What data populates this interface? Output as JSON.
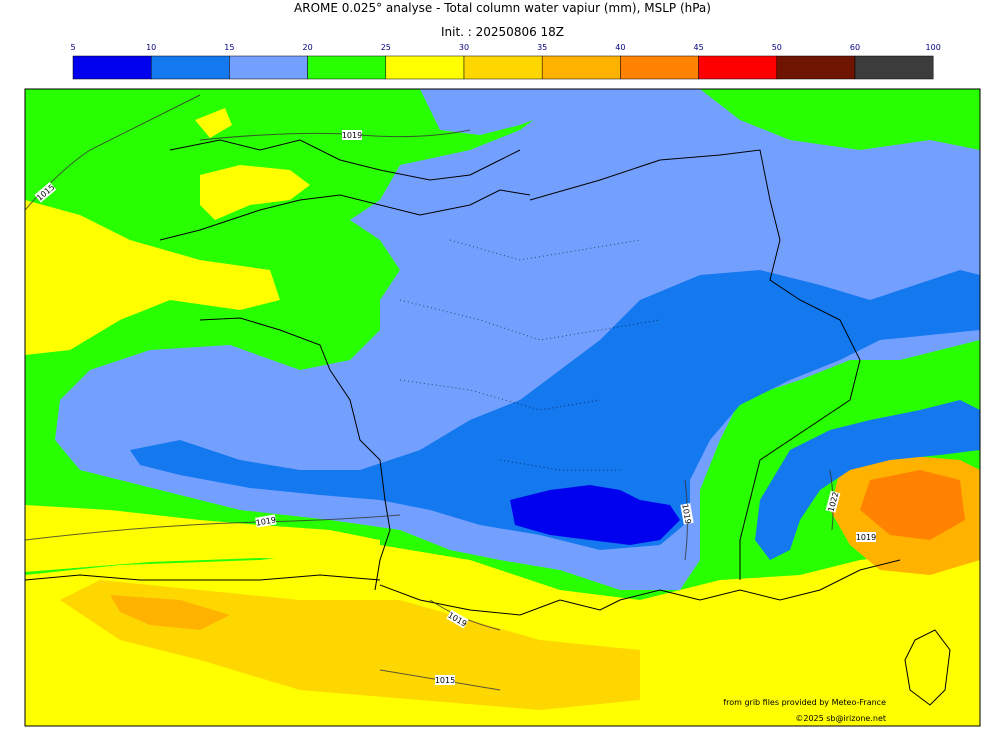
{
  "header": {
    "title": "AROME 0.025° analyse - Total column water vapiur (mm), MSLP (hPa)",
    "subtitle": "Init. : 20250806 18Z"
  },
  "colorbar": {
    "ticks": [
      "5",
      "10",
      "15",
      "20",
      "25",
      "30",
      "35",
      "40",
      "45",
      "50",
      "60",
      "100"
    ],
    "colors": [
      "#0000ee",
      "#1478ef",
      "#73a0ff",
      "#28ff00",
      "#ffff00",
      "#ffd700",
      "#ffb300",
      "#ff8200",
      "#ff0000",
      "#6e1400",
      "#3c3c3c"
    ]
  },
  "isobar_labels": [
    "1019",
    "1015",
    "1019",
    "1019",
    "1022",
    "1019",
    "1019",
    "1015"
  ],
  "credits": {
    "source": "from grib files provided by Meteo-France",
    "copyright": "©2025 sb@irizone.net"
  }
}
